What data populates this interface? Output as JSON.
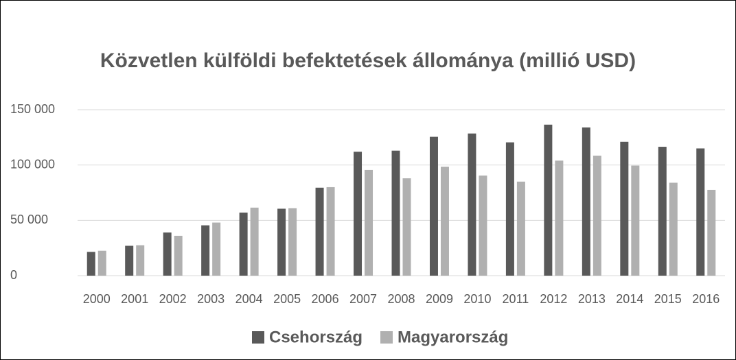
{
  "chart_data": {
    "type": "bar",
    "title": "Közvetlen külföldi befektetések állománya (millió USD)",
    "categories": [
      "2000",
      "2001",
      "2002",
      "2003",
      "2004",
      "2005",
      "2006",
      "2007",
      "2008",
      "2009",
      "2010",
      "2011",
      "2012",
      "2013",
      "2014",
      "2015",
      "2016"
    ],
    "series": [
      {
        "name": "Csehország",
        "color": "#595959",
        "values": [
          21500,
          27000,
          39000,
          45500,
          57000,
          60500,
          79500,
          112000,
          113000,
          125500,
          128500,
          120500,
          136500,
          134000,
          121000,
          116500,
          115000
        ]
      },
      {
        "name": "Magyarország",
        "color": "#b0b0b0",
        "values": [
          22500,
          27500,
          36000,
          48000,
          61500,
          61000,
          80000,
          95500,
          88000,
          98500,
          90500,
          85000,
          104000,
          108500,
          99500,
          84000,
          77500
        ]
      }
    ],
    "ylim": [
      0,
      150000
    ],
    "yticks": [
      0,
      {
        "value": 50000,
        "label": "50 000"
      },
      {
        "value": 100000,
        "label": "100 000"
      },
      {
        "value": 150000,
        "label": "150 000"
      }
    ],
    "grid": true,
    "legend": "bottom"
  }
}
